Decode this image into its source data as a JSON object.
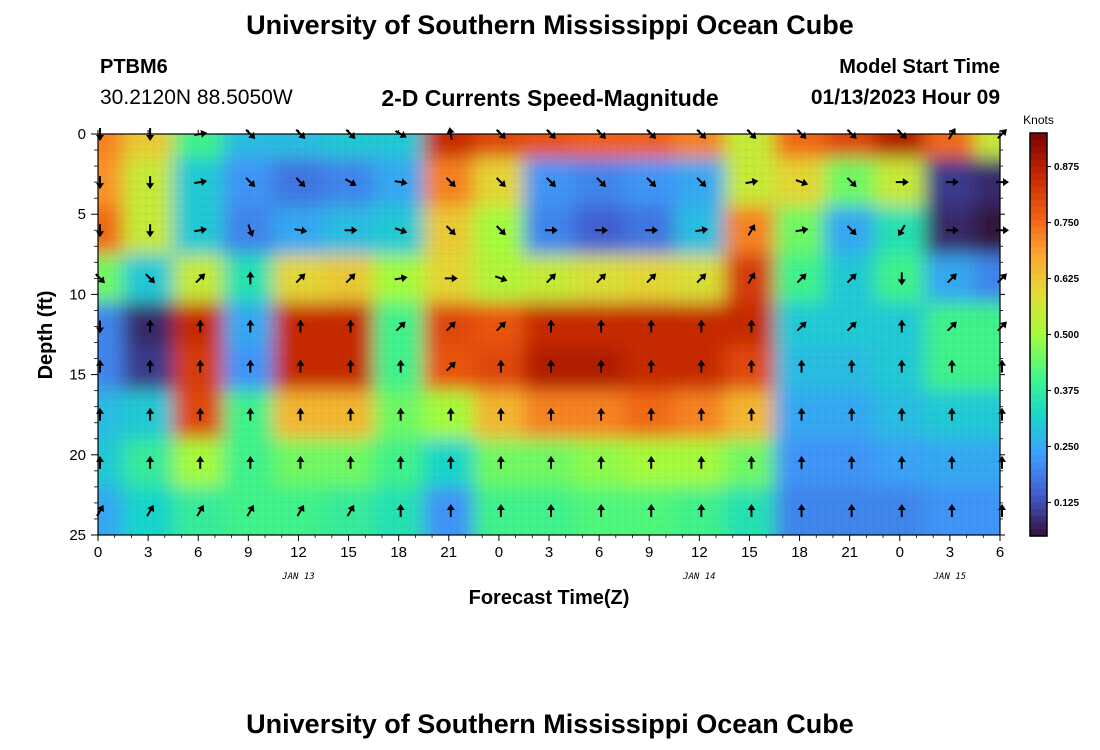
{
  "header": {
    "title": "University of Southern Mississippi Ocean Cube",
    "station_id": "PTBM6",
    "coordinates": "30.2120N  88.5050W",
    "subtitle": "2-D Currents Speed-Magnitude",
    "model_start_label": "Model Start Time",
    "model_start_value": "01/13/2023 Hour 09"
  },
  "footer": {
    "title": "University of Southern Mississippi Ocean Cube"
  },
  "chart_data": {
    "type": "heatmap",
    "title": "2-D Currents Speed-Magnitude",
    "xlabel": "Forecast Time(Z)",
    "ylabel": "Depth (ft)",
    "x_ticks": [
      "0",
      "3",
      "6",
      "9",
      "12",
      "15",
      "18",
      "21",
      "0",
      "3",
      "6",
      "9",
      "12",
      "15",
      "18",
      "21",
      "0",
      "3",
      "6"
    ],
    "x_dates": [
      {
        "label": "JAN 13",
        "at_tick": 4
      },
      {
        "label": "JAN 14",
        "at_tick": 12
      },
      {
        "label": "JAN 15",
        "at_tick": 17
      }
    ],
    "y_ticks": [
      0,
      5,
      10,
      15,
      20,
      25
    ],
    "ylim": [
      0,
      25
    ],
    "y_inverted": true,
    "colorbar": {
      "unit": "Knots",
      "range": [
        0.05,
        0.95
      ],
      "ticks": [
        "0.875",
        "0.750",
        "0.625",
        "0.500",
        "0.375",
        "0.250",
        "0.125"
      ],
      "tick_values": [
        0.875,
        0.75,
        0.625,
        0.5,
        0.375,
        0.25,
        0.125
      ],
      "colormap": "turbo"
    },
    "depths_ft": [
      0,
      3,
      6,
      9,
      12,
      14.5,
      17.5,
      20.5,
      23.5
    ],
    "time_hours": [
      0,
      3,
      6,
      9,
      12,
      15,
      18,
      21,
      24,
      27,
      30,
      33,
      36,
      39,
      42,
      45,
      48,
      51,
      54
    ],
    "speed_knots": [
      [
        0.72,
        0.62,
        0.4,
        0.28,
        0.28,
        0.3,
        0.3,
        0.85,
        0.8,
        0.78,
        0.76,
        0.76,
        0.72,
        0.55,
        0.75,
        0.8,
        0.88,
        0.75,
        0.55
      ],
      [
        0.7,
        0.55,
        0.3,
        0.22,
        0.18,
        0.2,
        0.25,
        0.72,
        0.6,
        0.22,
        0.2,
        0.22,
        0.25,
        0.55,
        0.6,
        0.45,
        0.55,
        0.1,
        0.08
      ],
      [
        0.75,
        0.55,
        0.3,
        0.2,
        0.25,
        0.28,
        0.3,
        0.62,
        0.5,
        0.2,
        0.15,
        0.18,
        0.28,
        0.72,
        0.45,
        0.25,
        0.35,
        0.08,
        0.05
      ],
      [
        0.45,
        0.3,
        0.55,
        0.35,
        0.6,
        0.62,
        0.5,
        0.6,
        0.52,
        0.55,
        0.58,
        0.6,
        0.58,
        0.82,
        0.4,
        0.3,
        0.4,
        0.25,
        0.2
      ],
      [
        0.2,
        0.08,
        0.85,
        0.25,
        0.85,
        0.85,
        0.4,
        0.8,
        0.78,
        0.85,
        0.85,
        0.85,
        0.85,
        0.85,
        0.3,
        0.3,
        0.3,
        0.4,
        0.4
      ],
      [
        0.2,
        0.1,
        0.82,
        0.22,
        0.85,
        0.85,
        0.4,
        0.78,
        0.8,
        0.88,
        0.88,
        0.85,
        0.85,
        0.8,
        0.28,
        0.28,
        0.3,
        0.4,
        0.4
      ],
      [
        0.28,
        0.3,
        0.8,
        0.4,
        0.65,
        0.65,
        0.45,
        0.5,
        0.65,
        0.72,
        0.72,
        0.75,
        0.72,
        0.65,
        0.25,
        0.25,
        0.28,
        0.3,
        0.3
      ],
      [
        0.3,
        0.38,
        0.5,
        0.4,
        0.45,
        0.45,
        0.4,
        0.32,
        0.45,
        0.45,
        0.48,
        0.5,
        0.5,
        0.45,
        0.22,
        0.22,
        0.24,
        0.25,
        0.25
      ],
      [
        0.25,
        0.32,
        0.38,
        0.4,
        0.4,
        0.38,
        0.35,
        0.22,
        0.4,
        0.4,
        0.42,
        0.42,
        0.4,
        0.35,
        0.2,
        0.2,
        0.2,
        0.22,
        0.22
      ]
    ],
    "vectors_deg": [
      [
        180,
        180,
        80,
        135,
        135,
        135,
        120,
        350,
        135,
        135,
        135,
        135,
        135,
        135,
        135,
        135,
        135,
        30,
        45
      ],
      [
        180,
        180,
        80,
        135,
        135,
        120,
        100,
        135,
        135,
        135,
        135,
        135,
        135,
        80,
        110,
        135,
        90,
        90,
        90
      ],
      [
        180,
        180,
        80,
        160,
        100,
        90,
        110,
        135,
        135,
        90,
        90,
        90,
        80,
        30,
        80,
        135,
        210,
        90,
        90
      ],
      [
        135,
        135,
        45,
        0,
        45,
        45,
        80,
        90,
        110,
        45,
        45,
        45,
        45,
        30,
        45,
        45,
        180,
        45,
        45
      ],
      [
        180,
        0,
        0,
        0,
        0,
        0,
        45,
        45,
        45,
        0,
        0,
        0,
        0,
        0,
        45,
        45,
        0,
        45,
        45
      ],
      [
        0,
        0,
        0,
        0,
        0,
        0,
        0,
        45,
        0,
        0,
        0,
        0,
        0,
        0,
        0,
        0,
        0,
        0,
        0
      ],
      [
        0,
        0,
        0,
        0,
        0,
        0,
        0,
        0,
        0,
        0,
        0,
        0,
        0,
        0,
        0,
        0,
        0,
        0,
        0
      ],
      [
        0,
        0,
        0,
        0,
        0,
        0,
        0,
        0,
        0,
        0,
        0,
        0,
        0,
        0,
        0,
        0,
        0,
        0,
        0
      ],
      [
        30,
        30,
        30,
        30,
        30,
        30,
        0,
        0,
        0,
        0,
        0,
        0,
        0,
        0,
        0,
        0,
        0,
        0,
        0
      ]
    ]
  }
}
